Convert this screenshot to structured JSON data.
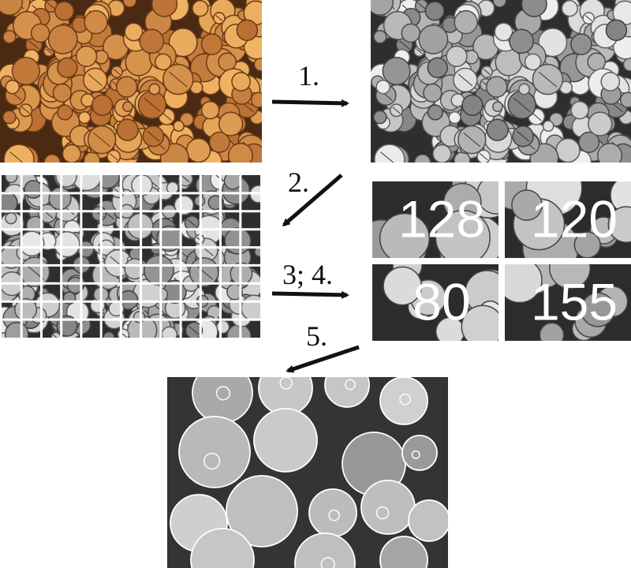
{
  "steps": {
    "step1": "1.",
    "step2": "2.",
    "step34": "3; 4.",
    "step5": "5."
  },
  "tiles": {
    "values": [
      "128",
      "120",
      "80",
      "155"
    ]
  },
  "colors": {
    "wood": "#c98a4a",
    "bark": "#5b3418",
    "arrow": "#111111",
    "outline": "#ffffff"
  }
}
